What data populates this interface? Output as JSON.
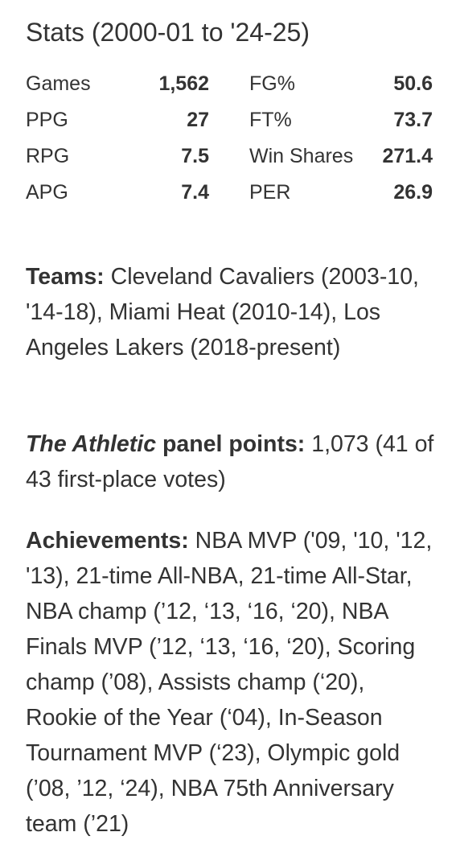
{
  "title": "Stats (2000-01 to '24-25)",
  "stats": [
    {
      "left_label": "Games",
      "left_value": "1,562",
      "right_label": "FG%",
      "right_value": "50.6"
    },
    {
      "left_label": "PPG",
      "left_value": "27",
      "right_label": "FT%",
      "right_value": "73.7"
    },
    {
      "left_label": "RPG",
      "left_value": "7.5",
      "right_label": "Win Shares",
      "right_value": "271.4"
    },
    {
      "left_label": "APG",
      "left_value": "7.4",
      "right_label": "PER",
      "right_value": "26.9"
    }
  ],
  "teams": {
    "label": "Teams:",
    "text": " Cleveland Cavaliers (2003-10, '14-18), Miami Heat (2010-14), Los Angeles Lakers (2018-present)"
  },
  "panel": {
    "label_italic": "The Athletic",
    "label_rest": " panel points:",
    "text": " 1,073 (41 of 43 first-place votes)"
  },
  "achievements": {
    "label": "Achievements:",
    "text": " NBA MVP ('09, '10, '12, '13), 21-time All-NBA, 21-time All-Star, NBA champ (’12, ‘13, ‘16, ‘20), NBA Finals MVP (’12, ‘13, ‘16, ‘20), Scoring champ (’08), Assists champ (‘20), Rookie of the Year (‘04), In-Season Tournament MVP (‘23), Olympic gold (’08, ’12, ‘24), NBA 75th Anniversary team (’21)"
  }
}
